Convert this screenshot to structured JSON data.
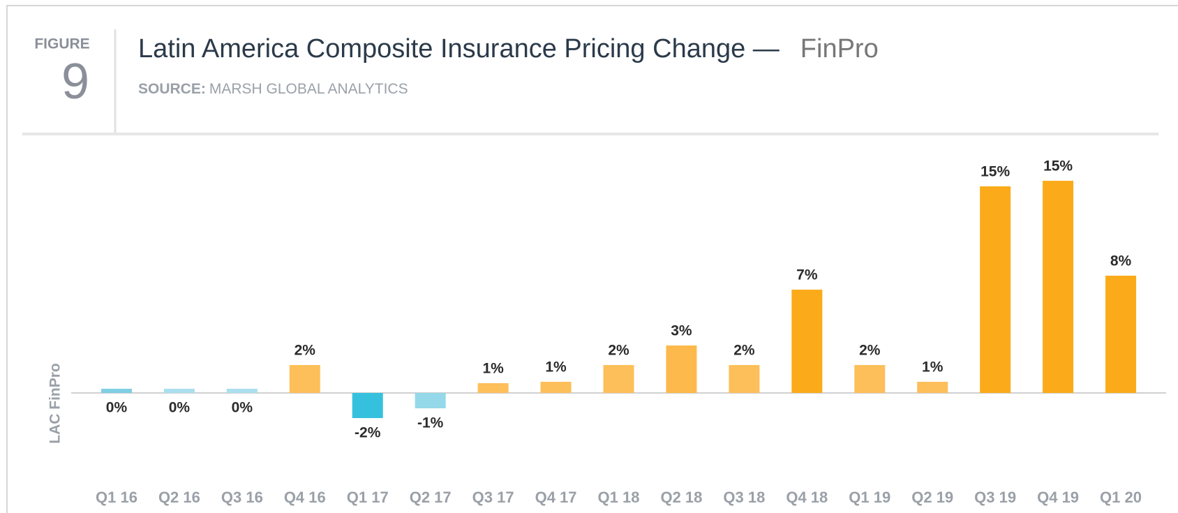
{
  "figure_label": "FIGURE",
  "figure_number": "9",
  "source_label": "SOURCE:",
  "source": "MARSH GLOBAL ANALYTICS",
  "chart_data": {
    "type": "bar",
    "title": "Latin America Composite Insurance Pricing Change —",
    "subtitle": "FinPro",
    "y_label": "LAC FinPro",
    "categories": [
      "Q1 16",
      "Q2 16",
      "Q3 16",
      "Q4 16",
      "Q1 17",
      "Q2 17",
      "Q3 17",
      "Q4 17",
      "Q1 18",
      "Q2 18",
      "Q3 18",
      "Q4 18",
      "Q1 19",
      "Q2 19",
      "Q3 19",
      "Q4 19",
      "Q1 20"
    ],
    "values": [
      0.3,
      0.3,
      0.3,
      2,
      -1.8,
      -1.1,
      0.7,
      0.8,
      2,
      3.4,
      2,
      7.4,
      2,
      0.8,
      14.8,
      15.2,
      8.4
    ],
    "value_labels": [
      "0%",
      "0%",
      "0%",
      "2%",
      "-2%",
      "-1%",
      "1%",
      "1%",
      "2%",
      "3%",
      "2%",
      "7%",
      "2%",
      "1%",
      "15%",
      "15%",
      "8%"
    ],
    "colors": [
      "#7fcfe3",
      "#a9dfee",
      "#a9dfee",
      "#fdbf5a",
      "#35c1dd",
      "#94d8ea",
      "#fdbf5a",
      "#fdbf5a",
      "#fdbf5a",
      "#fdb94b",
      "#fdbf5a",
      "#fbab19",
      "#fdbf5a",
      "#fdbf5a",
      "#fbab19",
      "#fbab19",
      "#fbab19"
    ],
    "ylim": [
      -4,
      16
    ]
  }
}
